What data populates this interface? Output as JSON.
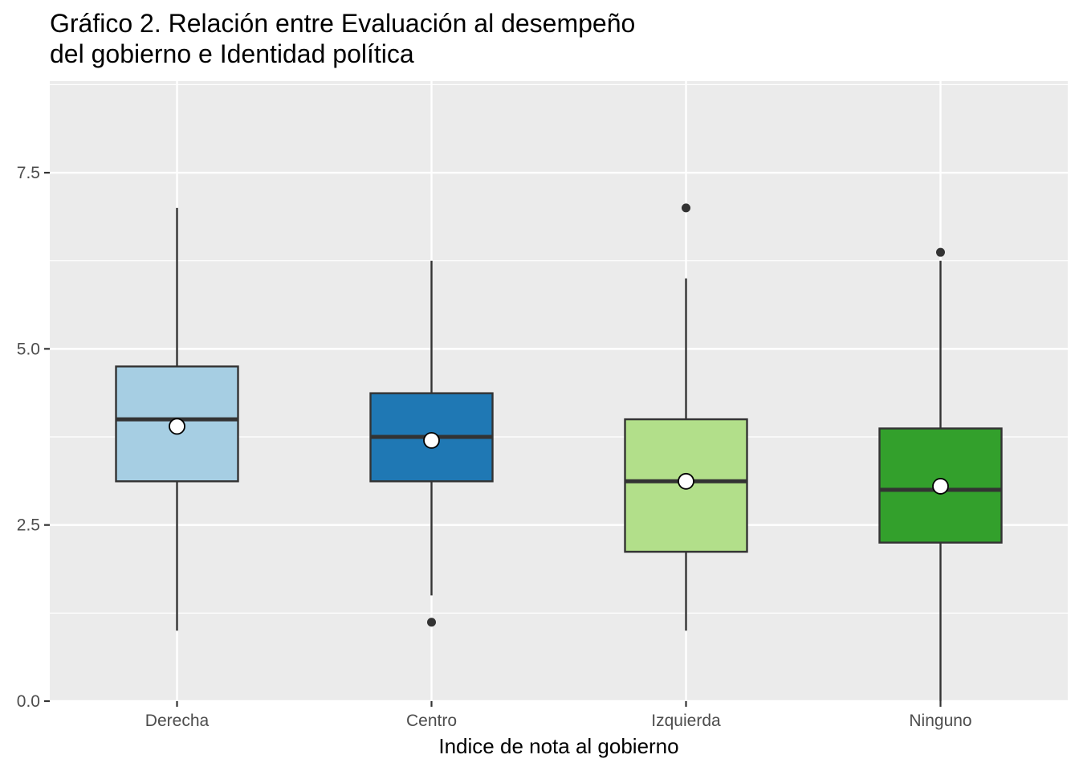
{
  "chart_data": {
    "type": "box",
    "title": "Gráfico 2. Relación entre Evaluación al desempeño\ndel gobierno e Identidad política",
    "xlabel": "Indice de nota al gobierno",
    "ylabel": "",
    "ylim": [
      0,
      8.8
    ],
    "yticks": [
      0.0,
      2.5,
      5.0,
      7.5
    ],
    "ytick_labels": [
      "0.0",
      "2.5",
      "5.0",
      "7.5"
    ],
    "grid": true,
    "legend": "none",
    "categories": [
      "Derecha",
      "Centro",
      "Izquierda",
      "Ninguno"
    ],
    "boxes": [
      {
        "category": "Derecha",
        "color": "#a6cee3",
        "whisker_low": 1.0,
        "q1": 3.12,
        "median": 4.0,
        "q3": 4.75,
        "whisker_high": 7.0,
        "mean": 3.9,
        "outliers": []
      },
      {
        "category": "Centro",
        "color": "#1f78b4",
        "whisker_low": 1.5,
        "q1": 3.12,
        "median": 3.75,
        "q3": 4.37,
        "whisker_high": 6.25,
        "mean": 3.7,
        "outliers": [
          1.12
        ]
      },
      {
        "category": "Izquierda",
        "color": "#b2df8a",
        "whisker_low": 1.0,
        "q1": 2.12,
        "median": 3.12,
        "q3": 4.0,
        "whisker_high": 6.0,
        "mean": 3.12,
        "outliers": [
          7.0
        ]
      },
      {
        "category": "Ninguno",
        "color": "#33a02c",
        "whisker_low": 0.0,
        "q1": 2.25,
        "median": 3.0,
        "q3": 3.87,
        "whisker_high": 6.25,
        "mean": 3.05,
        "outliers": [
          6.37
        ]
      }
    ]
  }
}
